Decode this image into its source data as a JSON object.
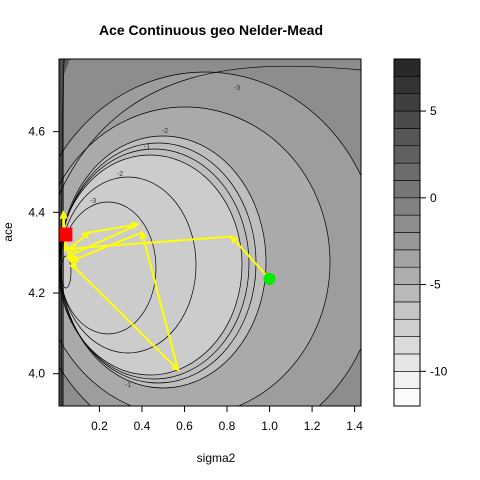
{
  "chart_data": {
    "type": "contour",
    "title": "Ace Continuous  geo  Nelder-Mead",
    "xlabel": "sigma2",
    "ylabel": "ace",
    "xlim": [
      0.01,
      1.43
    ],
    "ylim": [
      3.92,
      4.78
    ],
    "x_ticks": [
      "0.2",
      "0.4",
      "0.6",
      "0.8",
      "1.0",
      "1.2",
      "1.4"
    ],
    "y_ticks": [
      "4.0",
      "4.2",
      "4.4",
      "4.6"
    ],
    "colorbar": {
      "ticks": [
        "5",
        "0",
        "-5",
        "-10"
      ],
      "range": [
        -12,
        8
      ],
      "step": 1
    },
    "contour_labels": [
      "-3",
      "-2",
      "-1",
      "-2",
      "-3",
      "-1"
    ],
    "optimization_path": {
      "color": "#ffff00",
      "points": [
        {
          "x": 1.0,
          "y": 4.235
        },
        {
          "x": 0.82,
          "y": 4.34
        },
        {
          "x": 0.06,
          "y": 4.31
        },
        {
          "x": 0.15,
          "y": 4.35
        },
        {
          "x": 0.38,
          "y": 4.37
        },
        {
          "x": 0.05,
          "y": 4.29
        },
        {
          "x": 0.09,
          "y": 4.26
        },
        {
          "x": 0.57,
          "y": 4.01
        },
        {
          "x": 0.4,
          "y": 4.35
        },
        {
          "x": 0.07,
          "y": 4.28
        },
        {
          "x": 0.04,
          "y": 4.32
        },
        {
          "x": 0.03,
          "y": 4.4
        },
        {
          "x": 0.03,
          "y": 4.34
        }
      ]
    },
    "start_point": {
      "x": 1.0,
      "y": 4.235,
      "color": "#00ee00"
    },
    "end_point": {
      "x": 0.04,
      "y": 4.345,
      "color": "#ff0000"
    }
  }
}
